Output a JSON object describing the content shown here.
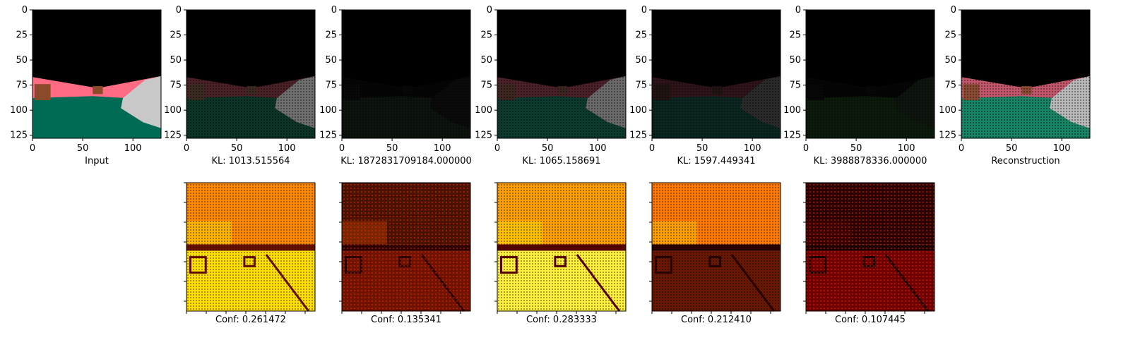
{
  "chart_data": [
    {
      "type": "image",
      "row": "top",
      "panel": "input",
      "xlabel": "Input",
      "xticks": [
        0,
        50,
        100
      ],
      "yticks": [
        0,
        25,
        50,
        75,
        100,
        125
      ],
      "xlim": [
        0,
        128
      ],
      "ylim": [
        128,
        0
      ],
      "colors": {
        "sky": "#000000",
        "wall": "#ff6b83",
        "floor": "#006b55",
        "object": "#8b4a2a",
        "car": "#c8c8c8"
      }
    },
    {
      "type": "image",
      "row": "top",
      "panel": "component-1",
      "xlabel": "KL: 1013.515564",
      "xticks": [
        0,
        50,
        100
      ],
      "yticks": [
        0,
        25,
        50,
        75,
        100,
        125
      ],
      "xlim": [
        0,
        128
      ],
      "ylim": [
        128,
        0
      ],
      "colors": {
        "sky": "#000000",
        "wall": "#4a2127",
        "floor": "#0c3528",
        "object": "#3a2a22",
        "car": "#6f6f6f"
      }
    },
    {
      "type": "image",
      "row": "top",
      "panel": "component-2",
      "xlabel": "KL: 1872831709184.000000",
      "xticks": [
        0,
        50,
        100
      ],
      "yticks": [
        0,
        25,
        50,
        75,
        100,
        125
      ],
      "xlim": [
        0,
        128
      ],
      "ylim": [
        128,
        0
      ],
      "colors": {
        "sky": "#000000",
        "wall": "#050505",
        "floor": "#0d130d",
        "object": "#080808",
        "car": "#0a0a0a"
      }
    },
    {
      "type": "image",
      "row": "top",
      "panel": "component-3",
      "xlabel": "KL: 1065.158691",
      "xticks": [
        0,
        50,
        100
      ],
      "yticks": [
        0,
        25,
        50,
        75,
        100,
        125
      ],
      "xlim": [
        0,
        128
      ],
      "ylim": [
        128,
        0
      ],
      "colors": {
        "sky": "#000000",
        "wall": "#4a2128",
        "floor": "#0d3a2e",
        "object": "#3b2620",
        "car": "#6a6a6a"
      }
    },
    {
      "type": "image",
      "row": "top",
      "panel": "component-4",
      "xlabel": "KL: 1597.449341",
      "xticks": [
        0,
        50,
        100
      ],
      "yticks": [
        0,
        25,
        50,
        75,
        100,
        125
      ],
      "xlim": [
        0,
        128
      ],
      "ylim": [
        128,
        0
      ],
      "colors": {
        "sky": "#000000",
        "wall": "#2e1418",
        "floor": "#0b2620",
        "object": "#1f1412",
        "car": "#2a2a2a"
      }
    },
    {
      "type": "image",
      "row": "top",
      "panel": "component-5",
      "xlabel": "KL: 3988878336.000000",
      "xticks": [
        0,
        50,
        100
      ],
      "yticks": [
        0,
        25,
        50,
        75,
        100,
        125
      ],
      "xlim": [
        0,
        128
      ],
      "ylim": [
        128,
        0
      ],
      "colors": {
        "sky": "#000000",
        "wall": "#050505",
        "floor": "#0c1a0c",
        "object": "#070707",
        "car": "#0e140e"
      }
    },
    {
      "type": "image",
      "row": "top",
      "panel": "reconstruction",
      "xlabel": "Reconstruction",
      "xticks": [
        0,
        50,
        100
      ],
      "yticks": [
        0,
        25,
        50,
        75,
        100,
        125
      ],
      "xlim": [
        0,
        128
      ],
      "ylim": [
        128,
        0
      ],
      "colors": {
        "sky": "#000000",
        "wall": "#c2566a",
        "floor": "#1a8466",
        "object": "#8a4a33",
        "car": "#b9b9b9"
      }
    },
    {
      "type": "heatmap",
      "row": "bottom",
      "panel": "confidence-1",
      "xlabel": "Conf: 0.261472",
      "colors": {
        "top": "#ff8a00",
        "band": "#ffb400",
        "floor": "#ffe000",
        "dark": "#6a1000"
      }
    },
    {
      "type": "heatmap",
      "row": "bottom",
      "panel": "confidence-2",
      "xlabel": "Conf: 0.135341",
      "colors": {
        "top": "#4a1200",
        "band": "#7a2600",
        "floor": "#6e1400",
        "dark": "#2a0000"
      }
    },
    {
      "type": "heatmap",
      "row": "bottom",
      "panel": "confidence-3",
      "xlabel": "Conf: 0.283333",
      "colors": {
        "top": "#ffa000",
        "band": "#ffc000",
        "floor": "#fff040",
        "dark": "#5a0000"
      }
    },
    {
      "type": "heatmap",
      "row": "bottom",
      "panel": "confidence-4",
      "xlabel": "Conf: 0.212410",
      "colors": {
        "top": "#ff7a00",
        "band": "#ffa000",
        "floor": "#6a1800",
        "dark": "#2a0000"
      }
    },
    {
      "type": "heatmap",
      "row": "bottom",
      "panel": "confidence-5",
      "xlabel": "Conf: 0.107445",
      "colors": {
        "top": "#2a0000",
        "band": "#3a0000",
        "floor": "#6e0000",
        "dark": "#1a0000"
      }
    }
  ]
}
